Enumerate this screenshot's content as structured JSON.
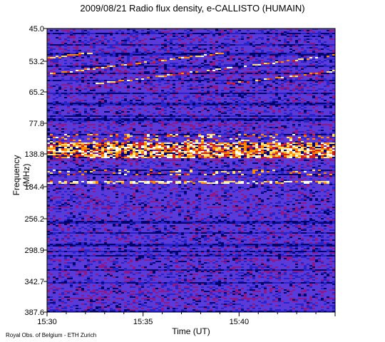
{
  "chart_data": {
    "type": "heatmap",
    "title": "2009/08/21  Radio flux density, e-CALLISTO (HUMAIN)",
    "xlabel": "Time (UT)",
    "ylabel": "Frequency (MHz)",
    "x_ticks": [
      "15:30",
      "15:35",
      "15:40"
    ],
    "y_ticks": [
      "45.0",
      "53.2",
      "65.2",
      "77.8",
      "138.8",
      "184.4",
      "256.2",
      "298.9",
      "342.7",
      "387.6"
    ],
    "x_range": [
      "15:30",
      "15:45"
    ],
    "y_range": [
      45.0,
      387.6
    ],
    "colorscale": [
      "#00006e",
      "#2a24c8",
      "#5a3ad8",
      "#8c1a8c",
      "#d22020",
      "#ff8a00",
      "#ffe070",
      "#ffffff"
    ],
    "features": [
      {
        "label": "strong broadband emission band",
        "freq_mhz": 138.8
      },
      {
        "label": "drifting stripes",
        "freq_mhz": [
          50,
          62
        ]
      },
      {
        "label": "narrow persistent line",
        "freq_mhz": 184.4
      }
    ]
  },
  "credit": "Royal Obs. of Belgium - ETH Zurich"
}
